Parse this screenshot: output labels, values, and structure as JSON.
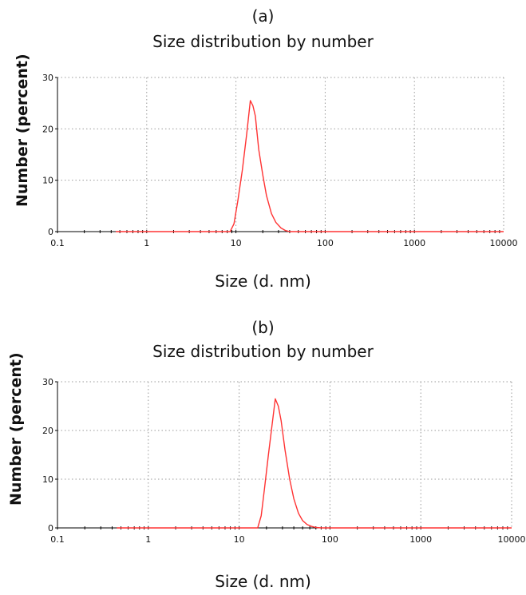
{
  "chart_data": [
    {
      "type": "line",
      "panel_label": "(a)",
      "title": "Size distribution by number",
      "xlabel": "Size (d. nm)",
      "ylabel": "Number (percent)",
      "x_scale": "log",
      "xlim": [
        0.1,
        10000
      ],
      "ylim": [
        0,
        30
      ],
      "x_ticks": [
        "0.1",
        "1",
        "10",
        "100",
        "1000",
        "10000"
      ],
      "y_ticks": [
        "0",
        "10",
        "20",
        "30"
      ],
      "grid": true,
      "series": [
        {
          "color": "#ff3333",
          "x": [
            0.45,
            8.6,
            9.5,
            10.5,
            11.8,
            13.2,
            14.5,
            15.5,
            16.5,
            18,
            20,
            22,
            25,
            28,
            32,
            36,
            40,
            50,
            10000
          ],
          "y": [
            0,
            0,
            1.5,
            6,
            12,
            19,
            25.5,
            24.5,
            22.5,
            16,
            11,
            7,
            3.5,
            1.8,
            0.7,
            0.2,
            0,
            0,
            0
          ]
        }
      ]
    },
    {
      "type": "line",
      "panel_label": "(b)",
      "title": "Size distribution by number",
      "xlabel": "Size (d. nm)",
      "ylabel": "Number (percent)",
      "x_scale": "log",
      "xlim": [
        0.1,
        10000
      ],
      "ylim": [
        0,
        30
      ],
      "x_ticks": [
        "0.1",
        "1",
        "10",
        "100",
        "1000",
        "10000"
      ],
      "y_ticks": [
        "0",
        "10",
        "20",
        "30"
      ],
      "grid": true,
      "series": [
        {
          "color": "#ff3333",
          "x": [
            0.45,
            16,
            17.5,
            19,
            21,
            23,
            25,
            27,
            29,
            32,
            36,
            40,
            45,
            50,
            56,
            63,
            70,
            80,
            10000
          ],
          "y": [
            0,
            0,
            2.5,
            8,
            15,
            21,
            26.5,
            25,
            22,
            16,
            10,
            6,
            3,
            1.5,
            0.7,
            0.3,
            0.1,
            0,
            0
          ]
        }
      ]
    }
  ]
}
